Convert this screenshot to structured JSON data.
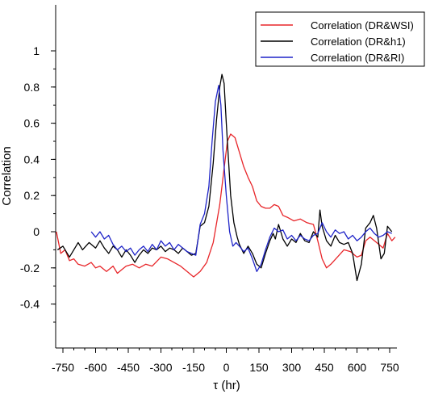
{
  "chart_data": {
    "type": "line",
    "xlabel": "τ (hr)",
    "ylabel": "Correlation",
    "xlim": [
      -790,
      790
    ],
    "ylim": [
      -0.5,
      1.0
    ],
    "x_ticks": [
      -750,
      -600,
      -450,
      -300,
      -150,
      0,
      150,
      300,
      450,
      600,
      750
    ],
    "y_ticks": [
      1,
      0.8,
      0.6,
      0.4,
      0.2,
      0,
      -0.2,
      -0.4
    ],
    "y_tick_labels": [
      "1",
      "0.8",
      "0.6",
      "0.4",
      "0.2",
      "0",
      "-0.2",
      "-0.4"
    ],
    "grid": false,
    "legend_position": "top-right",
    "series": [
      {
        "name": "Correlation (DR&WSI)",
        "color": "#e8262a",
        "points": [
          [
            -780,
            0.0
          ],
          [
            -760,
            -0.12
          ],
          [
            -740,
            -0.1
          ],
          [
            -720,
            -0.16
          ],
          [
            -700,
            -0.15
          ],
          [
            -680,
            -0.18
          ],
          [
            -650,
            -0.19
          ],
          [
            -620,
            -0.17
          ],
          [
            -600,
            -0.2
          ],
          [
            -580,
            -0.19
          ],
          [
            -550,
            -0.22
          ],
          [
            -520,
            -0.19
          ],
          [
            -500,
            -0.23
          ],
          [
            -480,
            -0.21
          ],
          [
            -460,
            -0.19
          ],
          [
            -430,
            -0.18
          ],
          [
            -400,
            -0.2
          ],
          [
            -370,
            -0.18
          ],
          [
            -340,
            -0.19
          ],
          [
            -300,
            -0.14
          ],
          [
            -270,
            -0.15
          ],
          [
            -240,
            -0.17
          ],
          [
            -210,
            -0.19
          ],
          [
            -180,
            -0.22
          ],
          [
            -150,
            -0.25
          ],
          [
            -120,
            -0.22
          ],
          [
            -90,
            -0.17
          ],
          [
            -60,
            -0.06
          ],
          [
            -30,
            0.15
          ],
          [
            -10,
            0.35
          ],
          [
            5,
            0.5
          ],
          [
            20,
            0.54
          ],
          [
            40,
            0.52
          ],
          [
            60,
            0.44
          ],
          [
            80,
            0.36
          ],
          [
            100,
            0.3
          ],
          [
            120,
            0.25
          ],
          [
            140,
            0.17
          ],
          [
            160,
            0.14
          ],
          [
            180,
            0.13
          ],
          [
            200,
            0.13
          ],
          [
            220,
            0.15
          ],
          [
            240,
            0.14
          ],
          [
            260,
            0.09
          ],
          [
            280,
            0.08
          ],
          [
            310,
            0.06
          ],
          [
            340,
            0.07
          ],
          [
            370,
            0.05
          ],
          [
            400,
            0.04
          ],
          [
            420,
            -0.05
          ],
          [
            440,
            -0.15
          ],
          [
            460,
            -0.2
          ],
          [
            480,
            -0.18
          ],
          [
            510,
            -0.14
          ],
          [
            540,
            -0.1
          ],
          [
            570,
            -0.11
          ],
          [
            600,
            -0.14
          ],
          [
            620,
            -0.13
          ],
          [
            640,
            -0.05
          ],
          [
            660,
            -0.03
          ],
          [
            690,
            -0.06
          ],
          [
            720,
            -0.09
          ],
          [
            740,
            -0.01
          ],
          [
            760,
            -0.05
          ],
          [
            775,
            -0.03
          ]
        ]
      },
      {
        "name": "Correlation (DR&h1)",
        "color": "#000000",
        "points": [
          [
            -775,
            -0.1
          ],
          [
            -750,
            -0.08
          ],
          [
            -720,
            -0.14
          ],
          [
            -700,
            -0.1
          ],
          [
            -680,
            -0.06
          ],
          [
            -660,
            -0.1
          ],
          [
            -630,
            -0.06
          ],
          [
            -600,
            -0.09
          ],
          [
            -580,
            -0.05
          ],
          [
            -560,
            -0.09
          ],
          [
            -540,
            -0.12
          ],
          [
            -520,
            -0.08
          ],
          [
            -500,
            -0.1
          ],
          [
            -480,
            -0.14
          ],
          [
            -460,
            -0.1
          ],
          [
            -440,
            -0.13
          ],
          [
            -420,
            -0.17
          ],
          [
            -400,
            -0.13
          ],
          [
            -380,
            -0.1
          ],
          [
            -360,
            -0.12
          ],
          [
            -340,
            -0.09
          ],
          [
            -320,
            -0.1
          ],
          [
            -300,
            -0.08
          ],
          [
            -280,
            -0.11
          ],
          [
            -260,
            -0.09
          ],
          [
            -240,
            -0.1
          ],
          [
            -220,
            -0.12
          ],
          [
            -200,
            -0.09
          ],
          [
            -180,
            -0.11
          ],
          [
            -160,
            -0.13
          ],
          [
            -140,
            -0.12
          ],
          [
            -120,
            0.03
          ],
          [
            -100,
            0.05
          ],
          [
            -80,
            0.14
          ],
          [
            -60,
            0.38
          ],
          [
            -45,
            0.62
          ],
          [
            -30,
            0.8
          ],
          [
            -20,
            0.87
          ],
          [
            -10,
            0.82
          ],
          [
            0,
            0.6
          ],
          [
            10,
            0.4
          ],
          [
            20,
            0.2
          ],
          [
            35,
            0.05
          ],
          [
            50,
            -0.03
          ],
          [
            60,
            -0.07
          ],
          [
            80,
            -0.12
          ],
          [
            100,
            -0.08
          ],
          [
            120,
            -0.12
          ],
          [
            140,
            -0.18
          ],
          [
            160,
            -0.2
          ],
          [
            180,
            -0.12
          ],
          [
            200,
            -0.05
          ],
          [
            215,
            -0.01
          ],
          [
            225,
            -0.04
          ],
          [
            240,
            0.04
          ],
          [
            260,
            -0.04
          ],
          [
            280,
            -0.08
          ],
          [
            300,
            -0.04
          ],
          [
            320,
            -0.06
          ],
          [
            340,
            -0.01
          ],
          [
            360,
            -0.05
          ],
          [
            380,
            -0.06
          ],
          [
            400,
            0.0
          ],
          [
            420,
            -0.03
          ],
          [
            430,
            0.12
          ],
          [
            440,
            0.03
          ],
          [
            460,
            -0.05
          ],
          [
            480,
            -0.08
          ],
          [
            500,
            -0.02
          ],
          [
            520,
            -0.06
          ],
          [
            540,
            -0.07
          ],
          [
            560,
            -0.06
          ],
          [
            580,
            -0.12
          ],
          [
            600,
            -0.27
          ],
          [
            620,
            -0.18
          ],
          [
            640,
            0.02
          ],
          [
            660,
            0.05
          ],
          [
            675,
            0.09
          ],
          [
            690,
            0.02
          ],
          [
            710,
            -0.15
          ],
          [
            725,
            -0.12
          ],
          [
            740,
            0.03
          ],
          [
            760,
            0.0
          ]
        ]
      },
      {
        "name": "Correlation (DR&RI)",
        "color": "#1f24c8",
        "points": [
          [
            -620,
            0.0
          ],
          [
            -600,
            -0.03
          ],
          [
            -580,
            0.0
          ],
          [
            -560,
            -0.04
          ],
          [
            -540,
            -0.02
          ],
          [
            -520,
            -0.07
          ],
          [
            -500,
            -0.1
          ],
          [
            -480,
            -0.08
          ],
          [
            -460,
            -0.11
          ],
          [
            -440,
            -0.09
          ],
          [
            -420,
            -0.13
          ],
          [
            -400,
            -0.1
          ],
          [
            -380,
            -0.08
          ],
          [
            -360,
            -0.11
          ],
          [
            -340,
            -0.07
          ],
          [
            -320,
            -0.1
          ],
          [
            -300,
            -0.05
          ],
          [
            -280,
            -0.08
          ],
          [
            -260,
            -0.06
          ],
          [
            -240,
            -0.1
          ],
          [
            -220,
            -0.07
          ],
          [
            -200,
            -0.09
          ],
          [
            -180,
            -0.11
          ],
          [
            -160,
            -0.12
          ],
          [
            -140,
            -0.13
          ],
          [
            -120,
            0.04
          ],
          [
            -100,
            0.1
          ],
          [
            -80,
            0.25
          ],
          [
            -65,
            0.5
          ],
          [
            -50,
            0.72
          ],
          [
            -35,
            0.81
          ],
          [
            -25,
            0.7
          ],
          [
            -15,
            0.45
          ],
          [
            0,
            0.2
          ],
          [
            15,
            0.0
          ],
          [
            30,
            -0.08
          ],
          [
            45,
            -0.06
          ],
          [
            60,
            -0.08
          ],
          [
            80,
            -0.11
          ],
          [
            100,
            -0.09
          ],
          [
            120,
            -0.15
          ],
          [
            140,
            -0.22
          ],
          [
            160,
            -0.18
          ],
          [
            180,
            -0.1
          ],
          [
            200,
            -0.03
          ],
          [
            220,
            0.02
          ],
          [
            240,
            0.0
          ],
          [
            260,
            0.01
          ],
          [
            280,
            -0.04
          ],
          [
            300,
            -0.02
          ],
          [
            320,
            -0.05
          ],
          [
            340,
            -0.02
          ],
          [
            360,
            -0.04
          ],
          [
            380,
            -0.05
          ],
          [
            400,
            -0.02
          ],
          [
            420,
            -0.01
          ],
          [
            440,
            0.05
          ],
          [
            460,
            0.0
          ],
          [
            480,
            -0.03
          ],
          [
            500,
            0.01
          ],
          [
            520,
            -0.01
          ],
          [
            540,
            0.0
          ],
          [
            560,
            -0.04
          ],
          [
            580,
            -0.02
          ],
          [
            600,
            -0.05
          ],
          [
            620,
            -0.03
          ],
          [
            640,
            0.0
          ],
          [
            660,
            0.02
          ],
          [
            680,
            -0.01
          ],
          [
            700,
            -0.03
          ],
          [
            720,
            -0.02
          ],
          [
            740,
            0.0
          ],
          [
            760,
            -0.01
          ]
        ]
      }
    ]
  }
}
